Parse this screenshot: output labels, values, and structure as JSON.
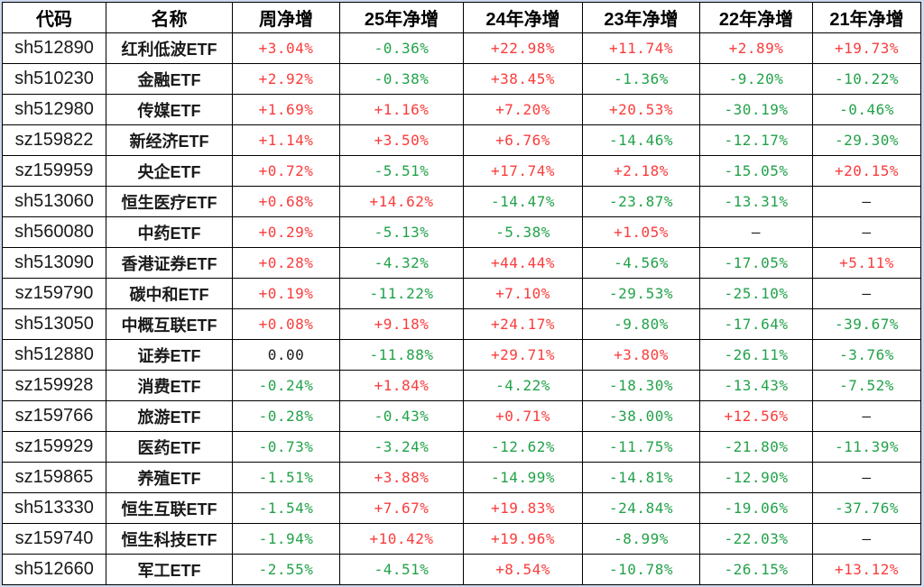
{
  "table": {
    "columns": [
      "代码",
      "名称",
      "周净增",
      "25年净增",
      "24年净增",
      "23年净增",
      "22年净增",
      "21年净增"
    ],
    "rows": [
      {
        "code": "sh512890",
        "name": "红利低波ETF",
        "values": [
          "+3.04%",
          "-0.36%",
          "+22.98%",
          "+11.74%",
          "+2.89%",
          "+19.73%"
        ]
      },
      {
        "code": "sh510230",
        "name": "金融ETF",
        "values": [
          "+2.92%",
          "-0.38%",
          "+38.45%",
          "-1.36%",
          "-9.20%",
          "-10.22%"
        ]
      },
      {
        "code": "sh512980",
        "name": "传媒ETF",
        "values": [
          "+1.69%",
          "+1.16%",
          "+7.20%",
          "+20.53%",
          "-30.19%",
          "-0.46%"
        ]
      },
      {
        "code": "sz159822",
        "name": "新经济ETF",
        "values": [
          "+1.14%",
          "+3.50%",
          "+6.76%",
          "-14.46%",
          "-12.17%",
          "-29.30%"
        ]
      },
      {
        "code": "sz159959",
        "name": "央企ETF",
        "values": [
          "+0.72%",
          "-5.51%",
          "+17.74%",
          "+2.18%",
          "-15.05%",
          "+20.15%"
        ]
      },
      {
        "code": "sh513060",
        "name": "恒生医疗ETF",
        "values": [
          "+0.68%",
          "+14.62%",
          "-14.47%",
          "-23.87%",
          "-13.31%",
          "—"
        ]
      },
      {
        "code": "sh560080",
        "name": "中药ETF",
        "values": [
          "+0.29%",
          "-5.13%",
          "-5.38%",
          "+1.05%",
          "—",
          "—"
        ]
      },
      {
        "code": "sh513090",
        "name": "香港证券ETF",
        "values": [
          "+0.28%",
          "-4.32%",
          "+44.44%",
          "-4.56%",
          "-17.05%",
          "+5.11%"
        ]
      },
      {
        "code": "sz159790",
        "name": "碳中和ETF",
        "values": [
          "+0.19%",
          "-11.22%",
          "+7.10%",
          "-29.53%",
          "-25.10%",
          "—"
        ]
      },
      {
        "code": "sh513050",
        "name": "中概互联ETF",
        "values": [
          "+0.08%",
          "+9.18%",
          "+24.17%",
          "-9.80%",
          "-17.64%",
          "-39.67%"
        ]
      },
      {
        "code": "sh512880",
        "name": "证券ETF",
        "values": [
          "0.00",
          "-11.88%",
          "+29.71%",
          "+3.80%",
          "-26.11%",
          "-3.76%"
        ]
      },
      {
        "code": "sz159928",
        "name": "消费ETF",
        "values": [
          "-0.24%",
          "+1.84%",
          "-4.22%",
          "-18.30%",
          "-13.43%",
          "-7.52%"
        ]
      },
      {
        "code": "sz159766",
        "name": "旅游ETF",
        "values": [
          "-0.28%",
          "-0.43%",
          "+0.71%",
          "-38.00%",
          "+12.56%",
          "—"
        ]
      },
      {
        "code": "sz159929",
        "name": "医药ETF",
        "values": [
          "-0.73%",
          "-3.24%",
          "-12.62%",
          "-11.75%",
          "-21.80%",
          "-11.39%"
        ]
      },
      {
        "code": "sz159865",
        "name": "养殖ETF",
        "values": [
          "-1.51%",
          "+3.88%",
          "-14.99%",
          "-14.81%",
          "-12.90%",
          "—"
        ]
      },
      {
        "code": "sh513330",
        "name": "恒生互联ETF",
        "values": [
          "-1.54%",
          "+7.67%",
          "+19.83%",
          "-24.84%",
          "-19.06%",
          "-37.76%"
        ]
      },
      {
        "code": "sz159740",
        "name": "恒生科技ETF",
        "values": [
          "-1.94%",
          "+10.42%",
          "+19.96%",
          "-8.99%",
          "-22.03%",
          "—"
        ]
      },
      {
        "code": "sh512660",
        "name": "军工ETF",
        "values": [
          "-2.55%",
          "-4.51%",
          "+8.54%",
          "-10.78%",
          "-26.15%",
          "+13.12%"
        ]
      }
    ],
    "colors": {
      "positive": "#fa3c3c",
      "negative": "#22a24a",
      "neutral": "#1a1a1a",
      "border": "#000000",
      "cell_background": "#ffffff",
      "outer_background": "#cdd9ec"
    }
  }
}
